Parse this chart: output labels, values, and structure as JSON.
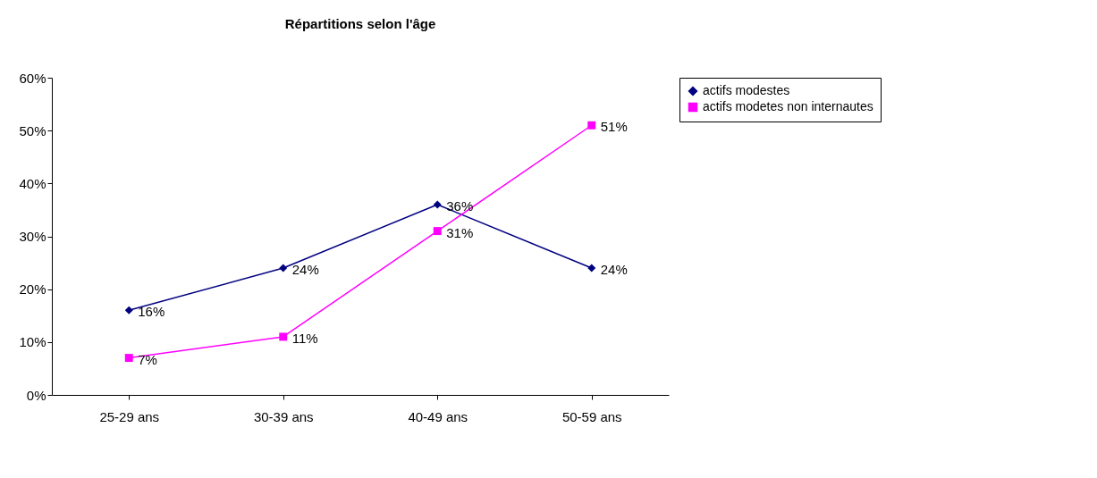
{
  "chart_data": {
    "type": "line",
    "title": "Répartitions selon l'âge",
    "categories": [
      "25-29 ans",
      "30-39 ans",
      "40-49 ans",
      "50-59 ans"
    ],
    "series": [
      {
        "name": "actifs modestes",
        "color": "#000080",
        "marker": "diamond",
        "values": [
          16,
          24,
          36,
          24
        ],
        "value_labels": [
          "16%",
          "24%",
          "36%",
          "24%"
        ]
      },
      {
        "name": "actifs modetes non internautes",
        "color": "#ff00ff",
        "marker": "square",
        "values": [
          7,
          11,
          31,
          51
        ],
        "value_labels": [
          "7%",
          "11%",
          "31%",
          "51%"
        ]
      }
    ],
    "ylim": [
      0,
      60
    ],
    "yticks": [
      {
        "value": 0,
        "label": "0%"
      },
      {
        "value": 10,
        "label": "10%"
      },
      {
        "value": 20,
        "label": "20%"
      },
      {
        "value": 30,
        "label": "30%"
      },
      {
        "value": 40,
        "label": "40%"
      },
      {
        "value": 50,
        "label": "50%"
      },
      {
        "value": 60,
        "label": "60%"
      }
    ],
    "legend": "right",
    "grid": false
  }
}
